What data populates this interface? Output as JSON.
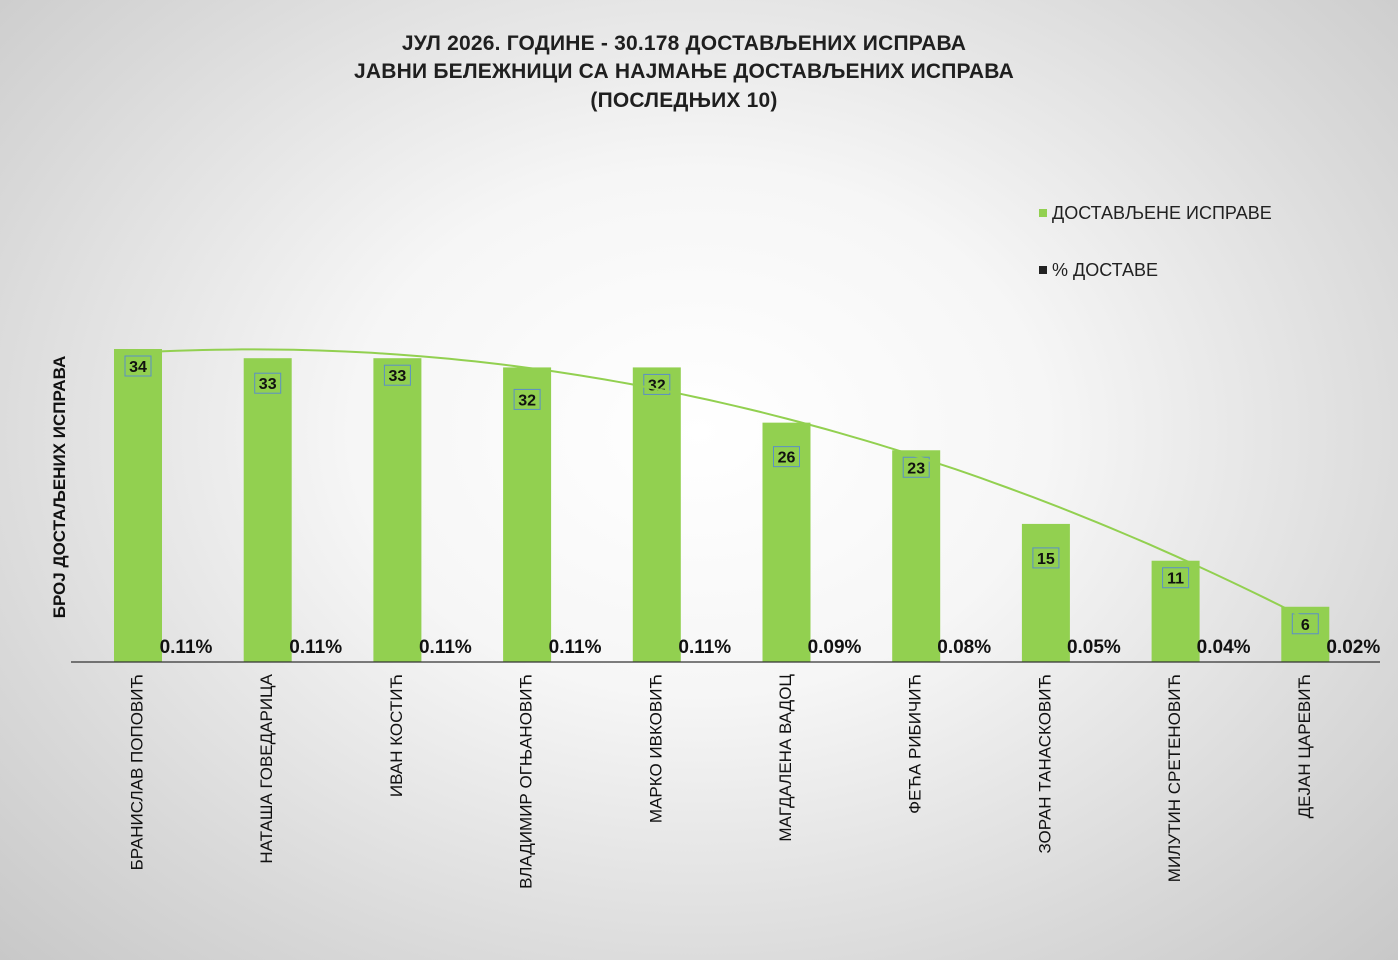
{
  "chart_data": {
    "type": "bar",
    "title_lines": [
      "ЈУЛ 2026. ГОДИНЕ - 30.178 ДОСТАВЉЕНИХ ИСПРАВА",
      "ЈАВНИ БЕЛЕЖНИЦИ СА НАЈМАЊЕ ДОСТАВЉЕНИХ ИСПРАВА",
      "(ПОСЛЕДЊИХ 10)"
    ],
    "ylabel": "БРОЈ ДОСТАЉЕНИХ ИСПРАВА",
    "xlabel": "",
    "categories": [
      "БРАНИСЛАВ ПОПОВИЋ",
      "НАТАША ГОВЕДАРИЦА",
      "ИВАН КОСТИЋ",
      "ВЛАДИМИР ОГЊАНОВИЋ",
      "МАРКО ИВКОВИЋ",
      "МАГДАЛЕНА ВАДОЦ",
      "ФЕЋА РИБИЧИЋ",
      "ЗОРАН ТАНАСКОВИЋ",
      "МИЛУТИН СРЕТЕНОВИЋ",
      "ДЕЈАН ЦАРЕВИЋ"
    ],
    "series": [
      {
        "name": "ДОСТАВЉЕНЕ ИСПРАВЕ",
        "color": "#92d050",
        "values": [
          34,
          33,
          33,
          32,
          32,
          26,
          23,
          15,
          11,
          6
        ]
      },
      {
        "name": "% ДОСТАВЕ",
        "color": "#222222",
        "values": [
          0.11,
          0.11,
          0.11,
          0.11,
          0.11,
          0.09,
          0.08,
          0.05,
          0.04,
          0.02
        ],
        "labels": [
          "0.11%",
          "0.11%",
          "0.11%",
          "0.11%",
          "0.11%",
          "0.09%",
          "0.08%",
          "0.05%",
          "0.04%",
          "0.02%"
        ]
      }
    ],
    "trendline": {
      "type": "polynomial",
      "series": "ДОСТАВЉЕНЕ ИСПРАВЕ",
      "color": "#92d050"
    },
    "ylim": [
      0,
      34
    ],
    "grid": false,
    "legend_position": "top-right"
  }
}
